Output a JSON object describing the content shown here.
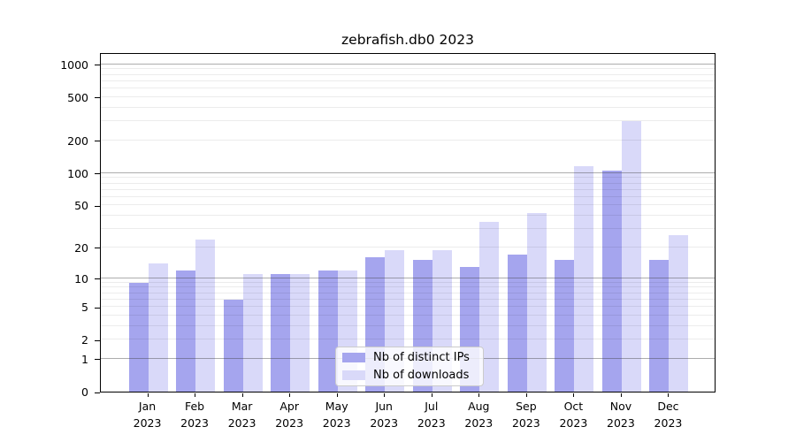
{
  "chart_data": {
    "type": "bar",
    "title": "zebrafish.db0 2023",
    "categories": [
      "Jan 2023",
      "Feb 2023",
      "Mar 2023",
      "Apr 2023",
      "May 2023",
      "Jun 2023",
      "Jul 2023",
      "Aug 2023",
      "Sep 2023",
      "Oct 2023",
      "Nov 2023",
      "Dec 2023"
    ],
    "series": [
      {
        "name": "Nb of distinct IPs",
        "color": "#a5a5ee",
        "values": [
          9,
          12,
          6,
          11,
          12,
          16,
          15,
          13,
          17,
          15,
          106,
          15
        ]
      },
      {
        "name": "Nb of downloads",
        "color": "#d9d9f9",
        "values": [
          14,
          24,
          11,
          11,
          12,
          19,
          19,
          35,
          42,
          115,
          300,
          26
        ]
      }
    ],
    "xlabel": "",
    "ylabel": "",
    "y_scale": "log10(1+x)",
    "y_ticks": [
      0,
      1,
      2,
      5,
      10,
      20,
      50,
      100,
      200,
      500,
      1000
    ],
    "y_minor_gridlines": [
      2,
      3,
      4,
      5,
      6,
      7,
      8,
      9,
      20,
      30,
      40,
      50,
      60,
      70,
      80,
      90,
      200,
      300,
      400,
      500,
      600,
      700,
      800,
      900
    ],
    "y_major_gridlines": [
      1,
      10,
      100,
      1000
    ],
    "ylim": [
      0,
      1295
    ],
    "grid": "horizontal",
    "legend_position": "inside-bottom-center"
  }
}
